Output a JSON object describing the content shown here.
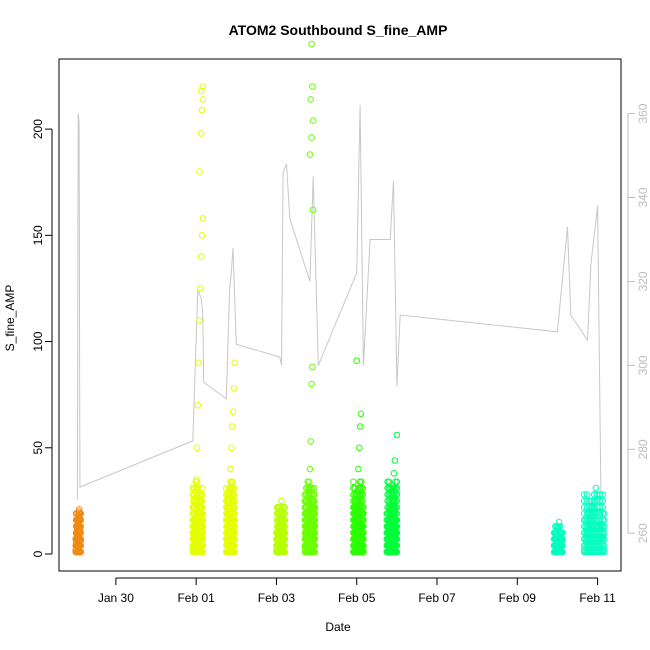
{
  "chart_data": {
    "type": "scatter",
    "title": "ATOM2 Southbound S_fine_AMP",
    "xlabel": "Date",
    "ylabel": "S_fine_AMP",
    "x_axis": {
      "type": "date",
      "range": [
        "2024-01-28T14:00",
        "2024-02-11T14:00"
      ],
      "tick_values": [
        "2024-01-30",
        "2024-02-01",
        "2024-02-03",
        "2024-02-05",
        "2024-02-07",
        "2024-02-09",
        "2024-02-11"
      ],
      "tick_labels": [
        "Jan 30",
        "Feb 01",
        "Feb 03",
        "Feb 05",
        "Feb 07",
        "Feb 09",
        "Feb 11"
      ]
    },
    "y_axis": {
      "range": [
        -8,
        233
      ],
      "ticks": [
        0,
        50,
        100,
        150,
        200
      ],
      "tick_labels": [
        "0",
        "50",
        "100",
        "150",
        "200"
      ]
    },
    "y2_axis": {
      "range": [
        251,
        373
      ],
      "ticks": [
        260,
        280,
        300,
        320,
        340,
        360
      ],
      "tick_labels": [
        "260",
        "280",
        "300",
        "320",
        "340",
        "360"
      ],
      "color": "#bdbdbd"
    },
    "grid": false,
    "legend": "none",
    "point_series": [
      {
        "color": "#f08a14",
        "time_window": [
          "2024-01-29T00:00",
          "2024-01-29T03:00"
        ],
        "points": [
          [
            0,
            2
          ],
          [
            0.3,
            5
          ],
          [
            0.6,
            9
          ],
          [
            0.9,
            12
          ],
          [
            1.2,
            15
          ],
          [
            1.5,
            18
          ],
          [
            1.8,
            20
          ],
          [
            2.1,
            21
          ],
          [
            2.4,
            17
          ],
          [
            2.7,
            11
          ],
          [
            3.0,
            6
          ],
          [
            3.0,
            1
          ]
        ]
      },
      {
        "color": "#e5ff00",
        "time_window": [
          "2024-01-31T22:00",
          "2024-02-01T04:00"
        ],
        "points": [
          [
            0,
            2
          ],
          [
            0.5,
            8
          ],
          [
            1,
            15
          ],
          [
            1.5,
            25
          ],
          [
            2,
            35
          ],
          [
            2.5,
            50
          ],
          [
            3,
            70
          ],
          [
            3.5,
            90
          ],
          [
            4,
            110
          ],
          [
            4.5,
            125
          ],
          [
            5,
            140
          ],
          [
            5.5,
            150
          ],
          [
            6,
            158
          ],
          [
            4,
            180
          ],
          [
            5,
            198
          ],
          [
            5.5,
            209
          ],
          [
            6,
            214
          ],
          [
            5,
            218
          ],
          [
            6,
            220
          ]
        ]
      },
      {
        "color": "#e5ff00",
        "time_window": [
          "2024-02-01T18:00",
          "2024-02-01T23:00"
        ],
        "points": [
          [
            0,
            1
          ],
          [
            0.5,
            5
          ],
          [
            1,
            10
          ],
          [
            1.5,
            20
          ],
          [
            2,
            30
          ],
          [
            2.5,
            40
          ],
          [
            3,
            50
          ],
          [
            3.5,
            60
          ],
          [
            4,
            67
          ],
          [
            4.5,
            78
          ],
          [
            5,
            90
          ]
        ]
      },
      {
        "color": "#b8ff00",
        "time_window": [
          "2024-02-03T00:00",
          "2024-02-03T05:00"
        ],
        "points": [
          [
            0,
            2
          ],
          [
            0.5,
            6
          ],
          [
            1,
            10
          ],
          [
            1.5,
            14
          ],
          [
            2,
            18
          ],
          [
            2.5,
            22
          ],
          [
            3,
            25
          ],
          [
            4,
            15
          ],
          [
            5,
            1
          ]
        ]
      },
      {
        "color": "#6aff00",
        "time_window": [
          "2024-02-03T17:00",
          "2024-02-03T23:00"
        ],
        "points": [
          [
            0,
            3
          ],
          [
            0.5,
            8
          ],
          [
            1,
            12
          ],
          [
            1.5,
            18
          ],
          [
            2,
            24
          ],
          [
            2.5,
            30
          ],
          [
            3,
            40
          ],
          [
            3.5,
            53
          ],
          [
            4,
            80
          ],
          [
            4.5,
            88
          ],
          [
            5,
            162
          ],
          [
            3,
            188
          ],
          [
            4,
            196
          ],
          [
            5,
            204
          ],
          [
            3.5,
            214
          ],
          [
            4.5,
            220
          ],
          [
            4,
            240
          ],
          [
            6,
            21
          ]
        ]
      },
      {
        "color": "#2bff00",
        "time_window": [
          "2024-02-04T22:00",
          "2024-02-05T04:00"
        ],
        "points": [
          [
            0,
            1
          ],
          [
            0.5,
            4
          ],
          [
            1,
            10
          ],
          [
            1.5,
            18
          ],
          [
            2,
            22
          ],
          [
            2.5,
            30
          ],
          [
            3,
            40
          ],
          [
            3.5,
            50
          ],
          [
            4,
            60
          ],
          [
            4.5,
            66
          ],
          [
            2,
            91
          ],
          [
            6,
            2
          ]
        ]
      },
      {
        "color": "#00ff3a",
        "time_window": [
          "2024-02-05T18:00",
          "2024-02-06T00:00"
        ],
        "points": [
          [
            0,
            1
          ],
          [
            0.5,
            5
          ],
          [
            1,
            10
          ],
          [
            1.5,
            15
          ],
          [
            2,
            20
          ],
          [
            2.5,
            28
          ],
          [
            3,
            32
          ],
          [
            3.5,
            38
          ],
          [
            4,
            44
          ],
          [
            5,
            56
          ]
        ]
      },
      {
        "color": "#00ffbf",
        "time_window": [
          "2024-02-09T22:00",
          "2024-02-10T03:00"
        ],
        "points": [
          [
            0,
            4
          ],
          [
            1,
            8
          ],
          [
            2,
            12
          ],
          [
            3,
            15
          ],
          [
            5,
            6
          ]
        ]
      },
      {
        "color": "#00ffbf",
        "time_window": [
          "2024-02-10T16:00",
          "2024-02-11T04:00"
        ],
        "points": [
          [
            0,
            2
          ],
          [
            1,
            6
          ],
          [
            2,
            10
          ],
          [
            3,
            14
          ],
          [
            4,
            18
          ],
          [
            5,
            22
          ],
          [
            6,
            28
          ],
          [
            7,
            31
          ],
          [
            8,
            26
          ],
          [
            9,
            20
          ],
          [
            10,
            14
          ],
          [
            11,
            8
          ],
          [
            12,
            2
          ]
        ]
      }
    ],
    "line_series": {
      "axis": "right",
      "color": "#c8c8c8",
      "points": [
        [
          "2024-01-29T01:00",
          268
        ],
        [
          "2024-01-29T01:30",
          360
        ],
        [
          "2024-01-29T02:00",
          358
        ],
        [
          "2024-01-29T02:30",
          271
        ],
        [
          "2024-01-31T22:00",
          282
        ],
        [
          "2024-02-01T01:00",
          318
        ],
        [
          "2024-02-01T03:00",
          316
        ],
        [
          "2024-02-01T04:00",
          312
        ],
        [
          "2024-02-01T04:30",
          296
        ],
        [
          "2024-02-01T18:00",
          292
        ],
        [
          "2024-02-01T20:00",
          318
        ],
        [
          "2024-02-01T21:00",
          322
        ],
        [
          "2024-02-01T22:00",
          328
        ],
        [
          "2024-02-02T00:00",
          305
        ],
        [
          "2024-02-03T02:00",
          302
        ],
        [
          "2024-02-03T03:00",
          300
        ],
        [
          "2024-02-03T04:00",
          346
        ],
        [
          "2024-02-03T06:00",
          348
        ],
        [
          "2024-02-03T08:00",
          335
        ],
        [
          "2024-02-03T20:00",
          320
        ],
        [
          "2024-02-03T22:00",
          345
        ],
        [
          "2024-02-04T01:00",
          300
        ],
        [
          "2024-02-05T00:00",
          322
        ],
        [
          "2024-02-05T02:00",
          362
        ],
        [
          "2024-02-05T04:00",
          300
        ],
        [
          "2024-02-05T08:00",
          330
        ],
        [
          "2024-02-05T20:00",
          330
        ],
        [
          "2024-02-05T22:00",
          344
        ],
        [
          "2024-02-06T00:00",
          295
        ],
        [
          "2024-02-06T02:00",
          312
        ],
        [
          "2024-02-10T00:00",
          308
        ],
        [
          "2024-02-10T06:00",
          333
        ],
        [
          "2024-02-10T08:00",
          312
        ],
        [
          "2024-02-10T18:00",
          306
        ],
        [
          "2024-02-10T20:00",
          324
        ],
        [
          "2024-02-11T00:00",
          338
        ],
        [
          "2024-02-11T02:00",
          270
        ]
      ]
    }
  }
}
